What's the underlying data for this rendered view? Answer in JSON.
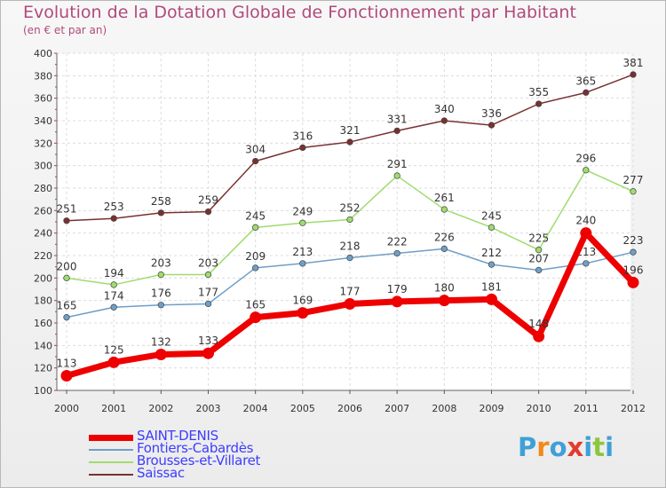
{
  "chart_data": {
    "type": "line",
    "title": "Evolution de la Dotation Globale de Fonctionnement par Habitant",
    "subtitle": "(en € et par an)",
    "xlabel": "",
    "ylabel": "",
    "ylim": [
      100,
      400
    ],
    "yticks": [
      "100",
      "120",
      "140",
      "160",
      "180",
      "200",
      "220",
      "240",
      "260",
      "280",
      "300",
      "320",
      "340",
      "360",
      "380",
      "400"
    ],
    "categories": [
      "2000",
      "2001",
      "2002",
      "2003",
      "2004",
      "2005",
      "2006",
      "2007",
      "2008",
      "2009",
      "2010",
      "2011",
      "2012"
    ],
    "series": [
      {
        "name": "SAINT-DENIS",
        "color": "#ee0000",
        "values": [
          113,
          125,
          132,
          133,
          165,
          169,
          177,
          179,
          180,
          181,
          148,
          240,
          196
        ]
      },
      {
        "name": "Fontiers-Cabardès",
        "color": "#6f9fc8",
        "values": [
          165,
          174,
          176,
          177,
          209,
          213,
          218,
          222,
          226,
          212,
          207,
          213,
          223
        ]
      },
      {
        "name": "Brousses-et-Villaret",
        "color": "#9fdc6e",
        "values": [
          200,
          194,
          203,
          203,
          245,
          249,
          252,
          291,
          261,
          245,
          225,
          296,
          277
        ]
      },
      {
        "name": "Saissac",
        "color": "#7a3030",
        "values": [
          251,
          253,
          258,
          259,
          304,
          316,
          321,
          331,
          340,
          336,
          355,
          365,
          381
        ]
      }
    ],
    "legend_position": "bottom-left"
  },
  "brand": {
    "letters": [
      "P",
      "r",
      "o",
      "x",
      "i",
      "t",
      "i"
    ]
  }
}
